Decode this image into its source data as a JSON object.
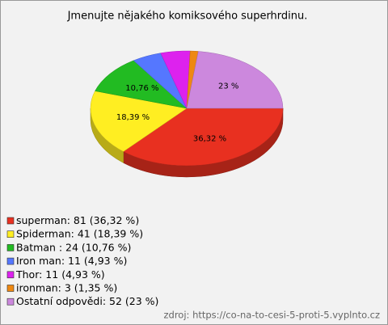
{
  "chart_data": {
    "type": "pie3d",
    "title": "Jmenujte nějakého komiksového superhrdinu.",
    "categories": [
      "superman: 81 (36,32 %)",
      "Spiderman: 41 (18,39 %)",
      "Batman : 24 (10,76 %)",
      "Iron man: 11 (4,93 %)",
      "Thor: 11 (4,93 %)",
      "ironman: 3 (1,35 %)",
      "Ostatní odpovědi: 52 (23 %)"
    ],
    "values": [
      36.32,
      18.39,
      10.76,
      4.93,
      4.93,
      1.35,
      23
    ],
    "value_labels": [
      "36,32 %",
      "18,39 %",
      "10,76 %",
      null,
      null,
      null,
      "23 %"
    ],
    "colors": [
      "#e83020",
      "#ffee22",
      "#22bb22",
      "#5577ff",
      "#dd22ee",
      "#ee8811",
      "#cc88dd"
    ],
    "source": "zdroj: https://co-na-to-cesi-5-proti-5.vyplnto.cz"
  }
}
